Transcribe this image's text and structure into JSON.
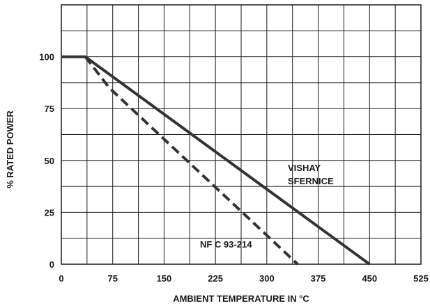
{
  "chart_data": {
    "type": "line",
    "title": "",
    "xlabel": "AMBIENT TEMPERATURE IN °C",
    "ylabel": "% RATED POWER",
    "xlim": [
      0,
      525
    ],
    "ylim": [
      0,
      125
    ],
    "x_ticks": [
      0,
      75,
      150,
      225,
      300,
      375,
      450,
      525
    ],
    "y_ticks": [
      0,
      25,
      50,
      75,
      100
    ],
    "x_grid_step": 37.5,
    "y_grid_step": 12.5,
    "grid": true,
    "series": [
      {
        "name": "VISHAY SFERNICE",
        "style": "solid",
        "color": "#333333",
        "x": [
          0,
          35,
          450
        ],
        "y": [
          100,
          100,
          0
        ]
      },
      {
        "name": "NF C 93-214",
        "style": "dashed",
        "color": "#333333",
        "x": [
          35,
          70,
          345
        ],
        "y": [
          100,
          85,
          0
        ]
      }
    ],
    "annotations": [
      {
        "id": "vishay",
        "lines": [
          "VISHAY",
          "SFERNICE"
        ]
      },
      {
        "id": "nfc",
        "lines": [
          "NF C 93-214"
        ]
      }
    ]
  }
}
